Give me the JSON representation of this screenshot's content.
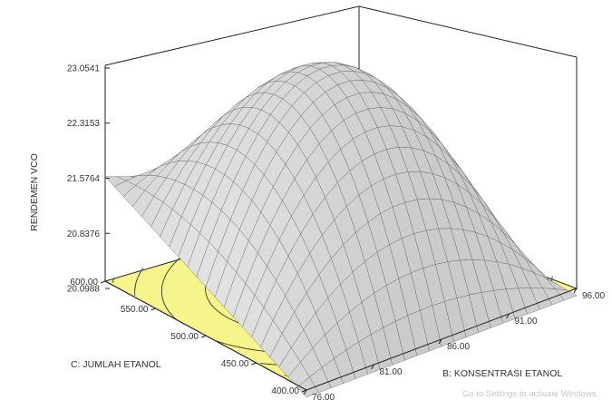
{
  "chart_data": {
    "type": "surface3d",
    "zlabel": "RENDEMEN VCO",
    "xlabel": "B: KONSENTRASI ETANOL",
    "ylabel": "C: JUMLAH ETANOL",
    "x_ticks": [
      "76.00",
      "81.00",
      "86.00",
      "91.00",
      "96.00"
    ],
    "y_ticks": [
      "400.00",
      "450.00",
      "500.00",
      "550.00",
      "600.00"
    ],
    "z_ticks": [
      "20.0988",
      "20.8376",
      "21.5764",
      "22.3153",
      "23.0541"
    ],
    "xlim": [
      76,
      96
    ],
    "ylim": [
      400,
      600
    ],
    "zlim": [
      20.0988,
      23.0541
    ],
    "surface_corner_values": {
      "b76_c400": 20.1,
      "b76_c600": 21.6,
      "b96_c400": 20.1,
      "b96_c600": 20.2,
      "max": 23.0541
    },
    "floor_color": "#f5f58c",
    "surface_color": "#d9d9d9",
    "grid": true
  },
  "watermark": "Go to Settings to activate Windows."
}
